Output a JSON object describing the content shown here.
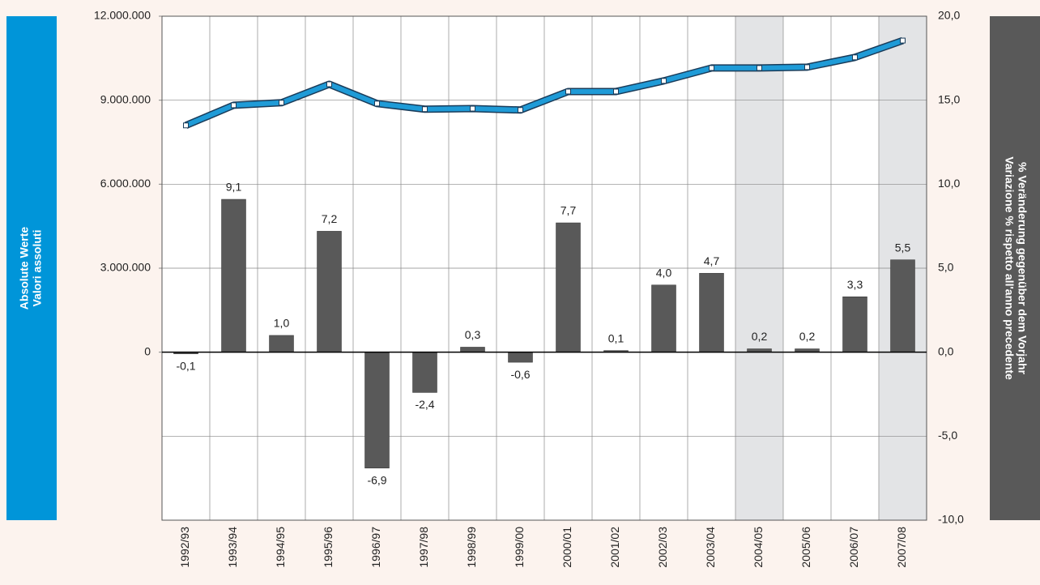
{
  "chart_data": {
    "type": "bar_line",
    "y_label": [
      "Absolute Werte",
      "Valori assoluti"
    ],
    "y2_label": [
      "% Veränderung gegenüber dem Vorjahr",
      "Variazione % rispetto all'anno precedente"
    ],
    "categories": [
      "1992/93",
      "1993/94",
      "1994/95",
      "1995/96",
      "1996/97",
      "1997/98",
      "1998/99",
      "1999/00",
      "2000/01",
      "2001/02",
      "2002/03",
      "2003/04",
      "2004/05",
      "2005/06",
      "2006/07",
      "2007/08"
    ],
    "shaded": [
      "2004/05",
      "2007/08"
    ],
    "series": [
      {
        "type": "line",
        "axis": "y",
        "color": "#1f9bd7",
        "values": [
          8100000,
          8820000,
          8910000,
          9570000,
          8880000,
          8680000,
          8700000,
          8650000,
          9310000,
          9310000,
          9690000,
          10150000,
          10150000,
          10180000,
          10530000,
          11130000
        ]
      },
      {
        "type": "bar",
        "axis": "y2",
        "color": "#595959",
        "values": [
          -0.1,
          9.1,
          1.0,
          7.2,
          -6.9,
          -2.4,
          0.3,
          -0.6,
          7.7,
          0.1,
          4.0,
          4.7,
          0.2,
          0.2,
          3.3,
          5.5
        ],
        "value_labels": [
          "-0,1",
          "9,1",
          "1,0",
          "7,2",
          "-6,9",
          "-2,4",
          "0,3",
          "-0,6",
          "7,7",
          "0,1",
          "4,0",
          "4,7",
          "0,2",
          "0,2",
          "3,3",
          "5,5"
        ]
      }
    ],
    "ylim": [
      -6000000,
      12000000
    ],
    "yticks": [
      0,
      {
        "value": 3000000,
        "label": "3.000.000"
      },
      {
        "value": 6000000,
        "label": "6.000.000"
      },
      {
        "value": 9000000,
        "label": "9.000.000"
      },
      {
        "value": 12000000,
        "label": "12.000.000"
      }
    ],
    "y2lim": [
      -10,
      20
    ],
    "y2ticks": [
      {
        "value": -10,
        "label": "-10,0"
      },
      {
        "value": -5,
        "label": "-5,0"
      },
      {
        "value": 0,
        "label": "0,0"
      },
      {
        "value": 5,
        "label": "5,0"
      },
      {
        "value": 10,
        "label": "10,0"
      },
      {
        "value": 15,
        "label": "15,0"
      },
      {
        "value": 20,
        "label": "20,0"
      }
    ],
    "grid": true
  }
}
